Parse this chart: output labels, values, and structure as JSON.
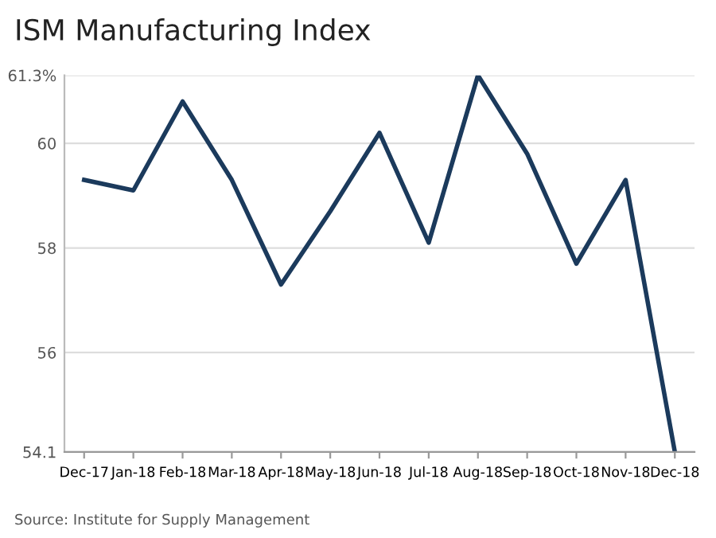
{
  "chart_data": {
    "type": "line",
    "title": "ISM Manufacturing Index",
    "categories": [
      "Dec-17",
      "Jan-18",
      "Feb-18",
      "Mar-18",
      "Apr-18",
      "May-18",
      "Jun-18",
      "Jul-18",
      "Aug-18",
      "Sep-18",
      "Oct-18",
      "Nov-18",
      "Dec-18"
    ],
    "series": [
      {
        "color": "#1b3a5c",
        "values": [
          59.3,
          59.1,
          60.8,
          59.3,
          57.3,
          58.7,
          60.2,
          58.1,
          61.3,
          59.8,
          57.7,
          59.3,
          54.1
        ]
      }
    ],
    "ylim": [
      54.1,
      61.3
    ],
    "yticks": [
      {
        "value": 54.1,
        "label": "54.1"
      },
      56,
      58,
      60,
      {
        "value": 61.3,
        "label": "61.3%"
      }
    ],
    "grid": "y",
    "marker": "none",
    "line_style": "solid",
    "annotations": [
      "Source: Institute for Supply Management"
    ]
  }
}
